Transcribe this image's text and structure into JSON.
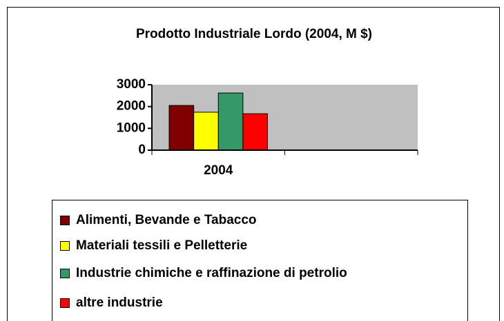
{
  "chart_data": {
    "type": "bar",
    "title": "Prodotto Industriale Lordo (2004, M $)",
    "categories": [
      "2004",
      null
    ],
    "series": [
      {
        "name": "Alimenti, Bevande e Tabacco",
        "color": "#800000",
        "values": [
          2050,
          null
        ]
      },
      {
        "name": "Materiali tessili e Pelletterie",
        "color": "#ffff00",
        "values": [
          1740,
          null
        ]
      },
      {
        "name": "Industrie chimiche e raffinazione di petrolio",
        "color": "#339966",
        "values": [
          2620,
          null
        ]
      },
      {
        "name": "altre industrie",
        "color": "#ff0000",
        "values": [
          1670,
          null
        ]
      }
    ],
    "ylim": [
      0,
      3000
    ],
    "yticks": [
      0,
      1000,
      2000,
      3000
    ],
    "plot_background": "#c0c0c0"
  }
}
